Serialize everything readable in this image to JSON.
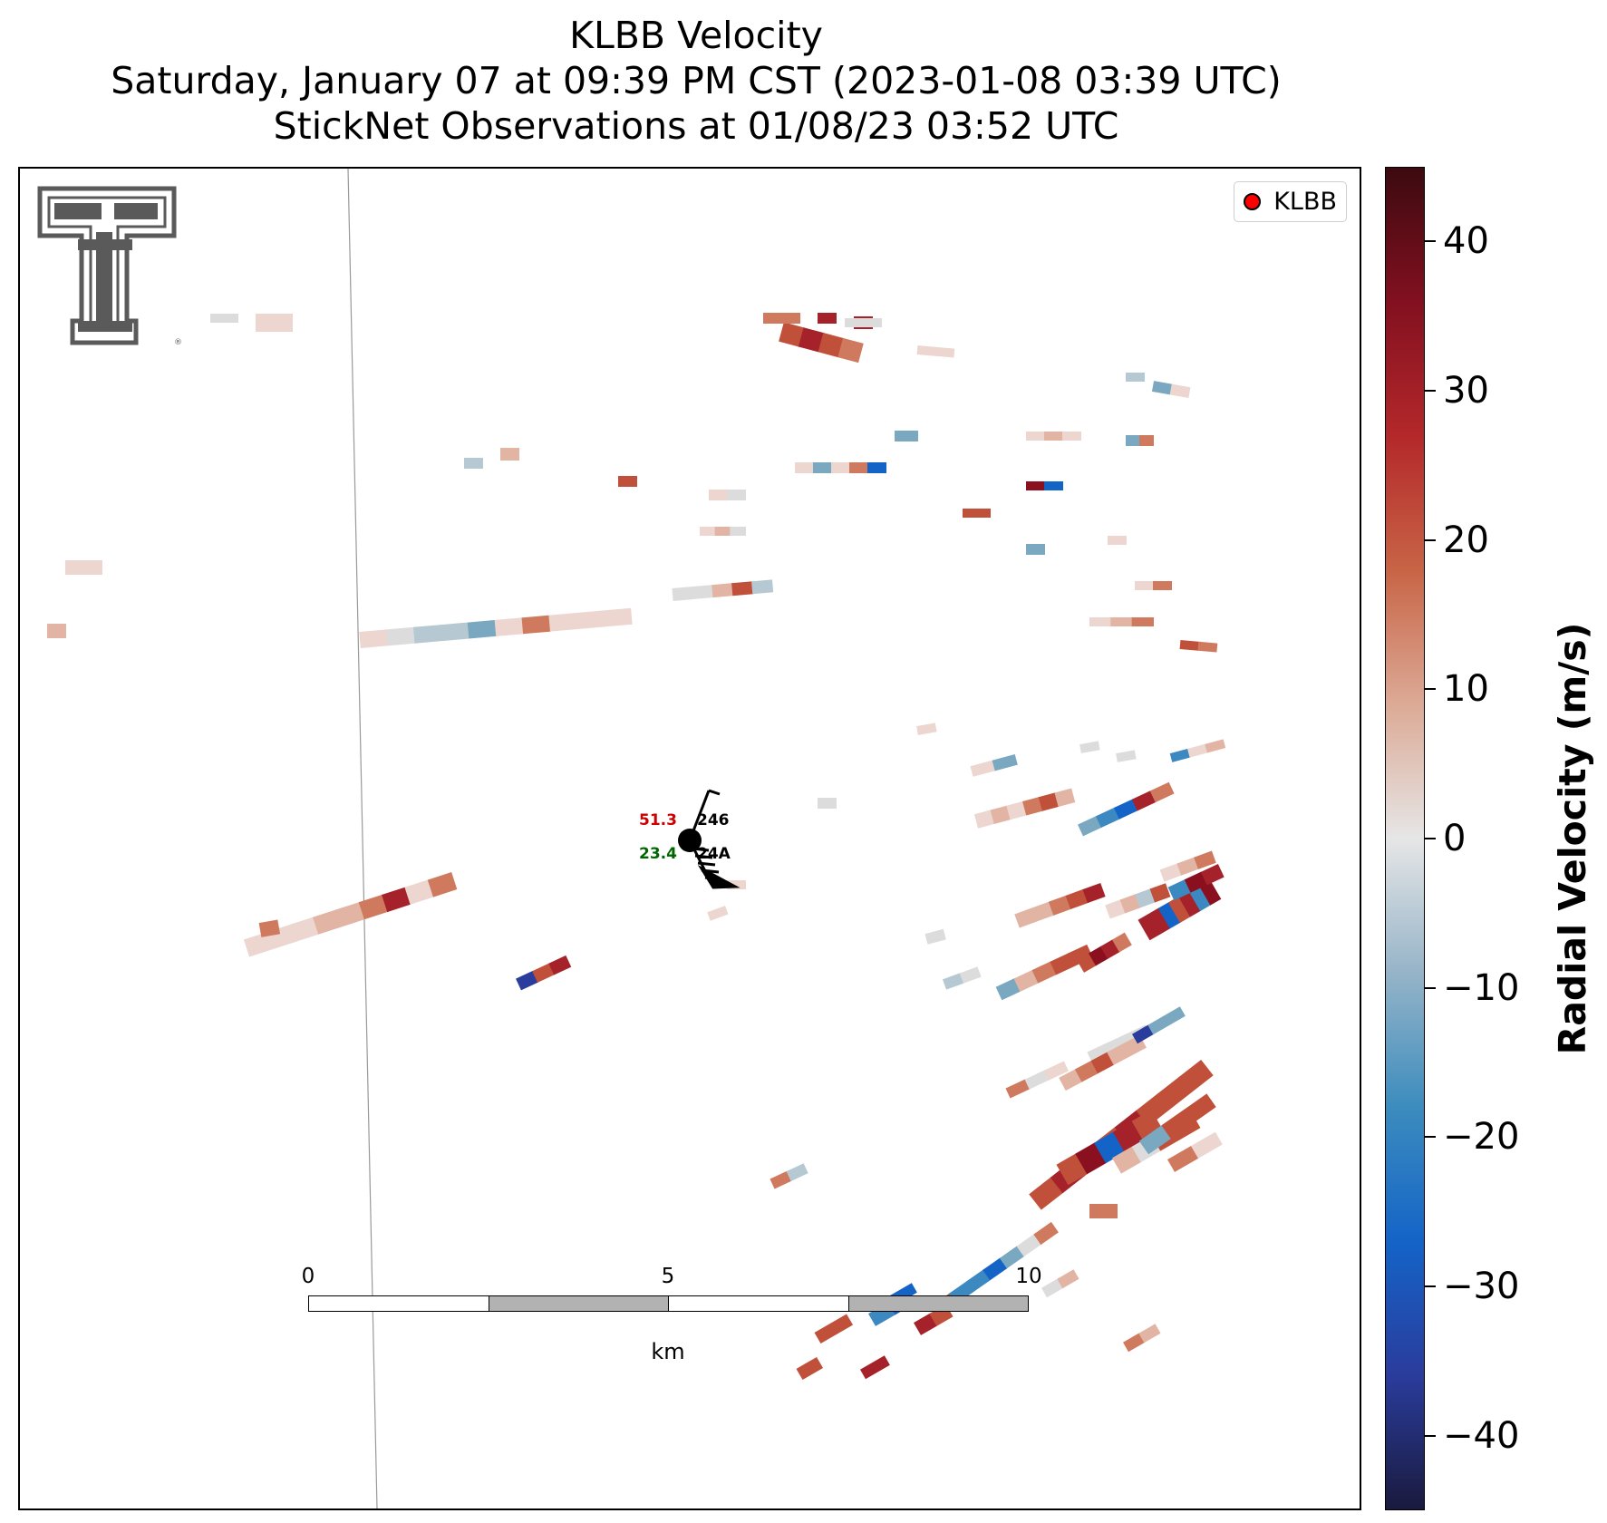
{
  "title": {
    "line1": "KLBB Velocity",
    "line2": "Saturday, January 07 at 09:39 PM CST (2023-01-08 03:39 UTC)",
    "line3": "StickNet Observations at 01/08/23 03:52 UTC"
  },
  "legend": {
    "marker_label": "KLBB",
    "marker_color": "#ff0000"
  },
  "logo": {
    "icon": "texas-tech-double-t-logo",
    "color": "#5a5a5a"
  },
  "station": {
    "id_top": "246",
    "id_bottom": "24A",
    "temperature": "51.3",
    "temperature_color": "#cc0000",
    "dewpoint": "23.4",
    "dewpoint_color": "#006600",
    "wind_barb_icon": "wind-barb-icon"
  },
  "scale_bar": {
    "ticks": [
      "0",
      "5",
      "10"
    ],
    "unit": "km"
  },
  "colorbar": {
    "label": "Radial Velocity (m/s)",
    "ticks": [
      "40",
      "30",
      "20",
      "10",
      "0",
      "−10",
      "−20",
      "−30",
      "−40"
    ],
    "range": [
      -45,
      45
    ],
    "colors": [
      "#1a1a3e",
      "#2a3c9c",
      "#1464c8",
      "#3c8cbe",
      "#96b4c8",
      "#e6e6e6",
      "#dcaa96",
      "#c86446",
      "#b4282a",
      "#821020",
      "#3c0a10"
    ]
  }
}
